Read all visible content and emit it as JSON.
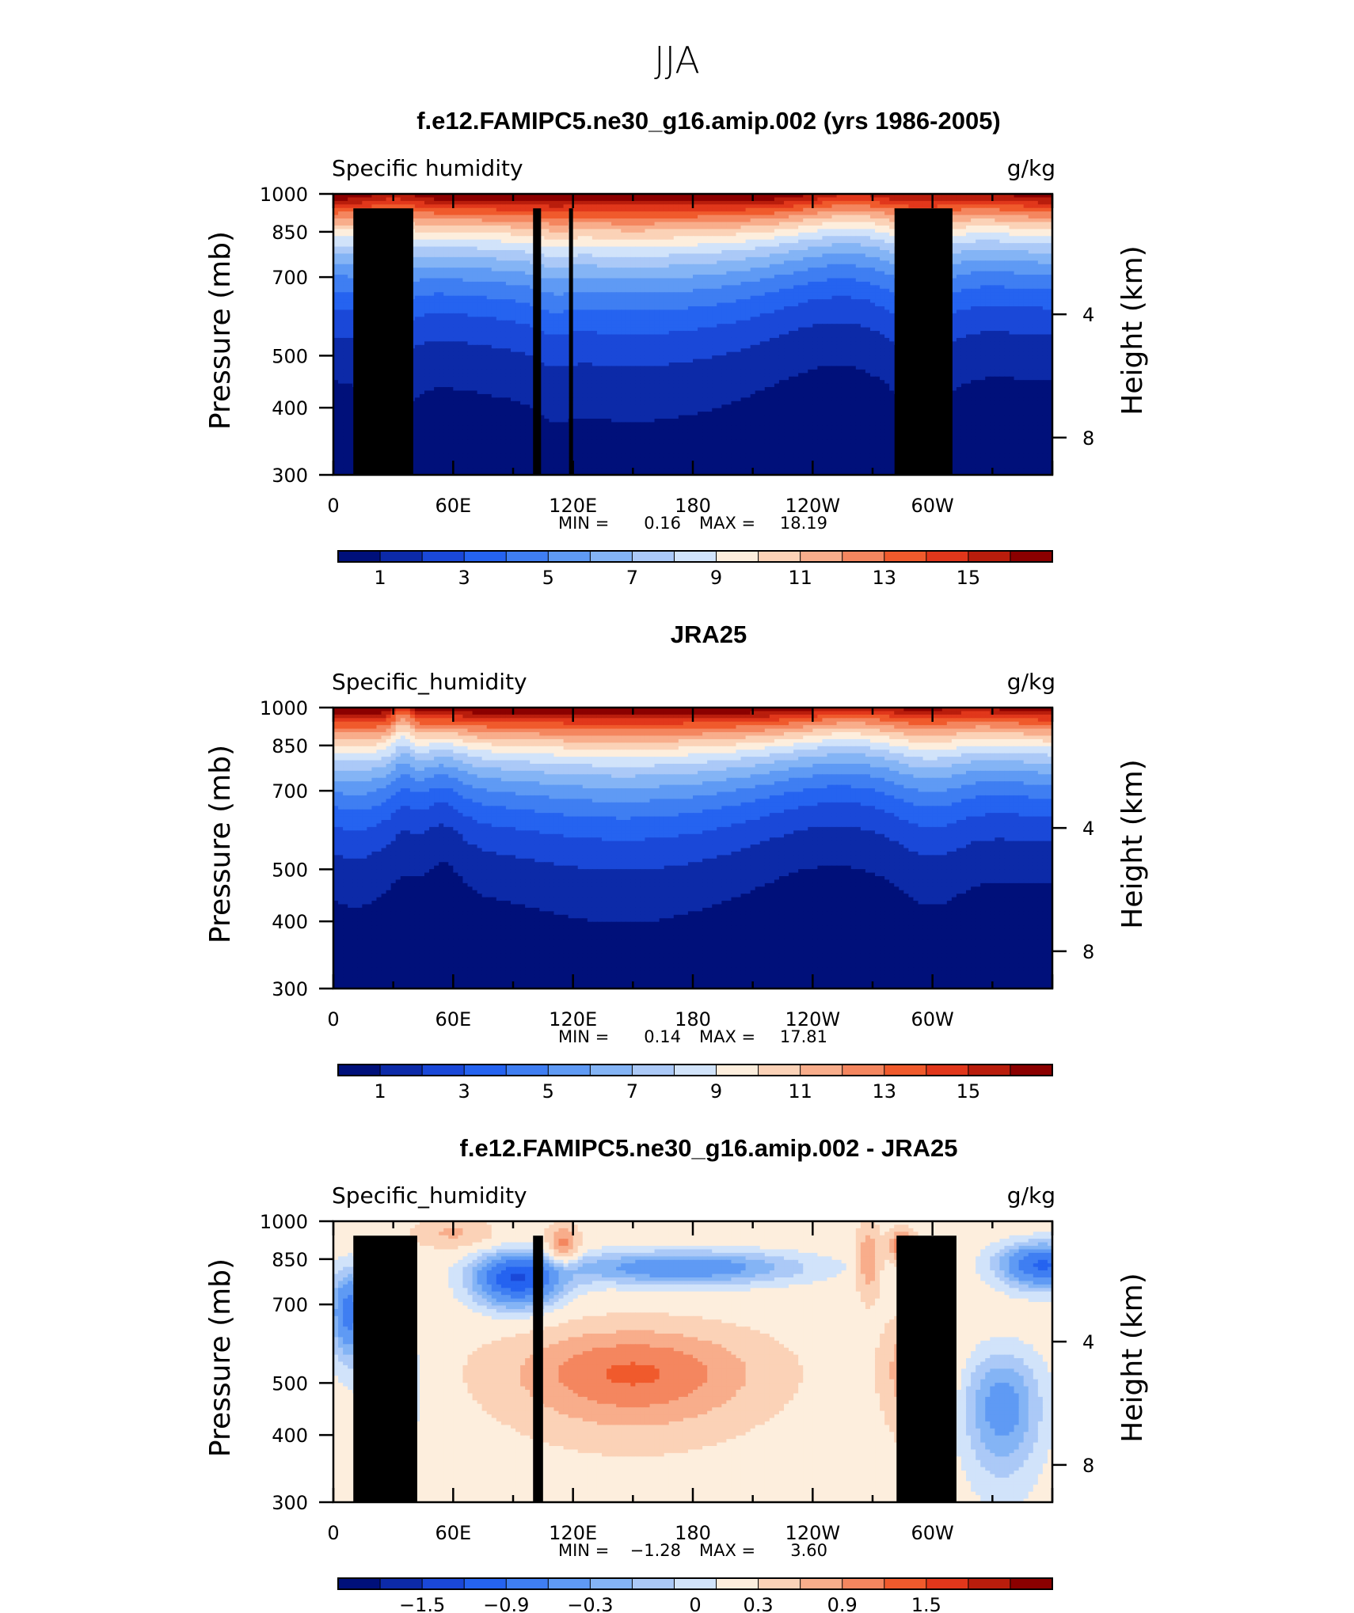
{
  "figure": {
    "title": "JJA"
  },
  "colors": {
    "seq_palette": [
      "#00107a",
      "#0c2aa8",
      "#1a48d8",
      "#2563f0",
      "#3f7ef2",
      "#5f9af4",
      "#84b4f5",
      "#abc9f7",
      "#d1e3fa",
      "#fdeedd",
      "#fbd2b7",
      "#f8ad8b",
      "#f4865f",
      "#f05a2c",
      "#e1371b",
      "#b91d0c",
      "#8b0000"
    ],
    "diff_palette": [
      "#00107a",
      "#0c2aa8",
      "#1a48d8",
      "#2563f0",
      "#3f7ef2",
      "#5f9af4",
      "#84b4f5",
      "#abc9f7",
      "#d1e3fa",
      "#fdeedd",
      "#fbd2b7",
      "#f8ad8b",
      "#f4865f",
      "#f05a2c",
      "#e1371b",
      "#b91d0c",
      "#8b0000"
    ],
    "topography": "#000000"
  },
  "chart_data": [
    {
      "type": "heatmap",
      "title": "f.e12.FAMIPC5.ne30_g16.amip.002 (yrs 1986-2005)",
      "left_label": "Specific humidity",
      "right_label": "g/kg",
      "ylabel": "Pressure (mb)",
      "ylabel_right": "Height (km)",
      "yticks": [
        "300",
        "400",
        "500",
        "700",
        "850",
        "1000"
      ],
      "yticks_right": [
        "8",
        "4"
      ],
      "xticks": [
        "0",
        "60E",
        "120E",
        "180",
        "120W",
        "60W"
      ],
      "ylim": [
        1000,
        300
      ],
      "xlim": [
        0,
        360
      ],
      "colorbar": {
        "labels": [
          "1",
          "3",
          "5",
          "7",
          "9",
          "11",
          "13",
          "15"
        ],
        "levels": [
          0,
          1,
          2,
          3,
          4,
          5,
          6,
          7,
          8,
          9,
          10,
          11,
          12,
          13,
          14,
          15,
          16
        ]
      },
      "min_max": {
        "min_label": "MIN =",
        "min": "0.16",
        "max_label": "MAX =",
        "max": "18.19"
      },
      "field": "model",
      "topography": [
        {
          "lon0": 10,
          "lon1": 40,
          "p": 940
        },
        {
          "lon0": 29,
          "lon1": 38,
          "p": 850
        },
        {
          "lon0": 100,
          "lon1": 104,
          "p": 940
        },
        {
          "lon0": 118,
          "lon1": 120,
          "p": 940
        },
        {
          "lon0": 281,
          "lon1": 310,
          "p": 940
        }
      ]
    },
    {
      "type": "heatmap",
      "title": "JRA25",
      "left_label": "Specific_humidity",
      "right_label": "g/kg",
      "ylabel": "Pressure (mb)",
      "ylabel_right": "Height (km)",
      "yticks": [
        "300",
        "400",
        "500",
        "700",
        "850",
        "1000"
      ],
      "yticks_right": [
        "8",
        "4"
      ],
      "xticks": [
        "0",
        "60E",
        "120E",
        "180",
        "120W",
        "60W"
      ],
      "ylim": [
        1000,
        300
      ],
      "xlim": [
        0,
        360
      ],
      "colorbar": {
        "labels": [
          "1",
          "3",
          "5",
          "7",
          "9",
          "11",
          "13",
          "15"
        ],
        "levels": [
          0,
          1,
          2,
          3,
          4,
          5,
          6,
          7,
          8,
          9,
          10,
          11,
          12,
          13,
          14,
          15,
          16
        ]
      },
      "min_max": {
        "min_label": "MIN =",
        "min": "0.14",
        "max_label": "MAX =",
        "max": "17.81"
      },
      "field": "obs",
      "topography": []
    },
    {
      "type": "heatmap",
      "title": "f.e12.FAMIPC5.ne30_g16.amip.002 - JRA25",
      "left_label": "Specific_humidity",
      "right_label": "g/kg",
      "ylabel": "Pressure (mb)",
      "ylabel_right": "Height (km)",
      "yticks": [
        "300",
        "400",
        "500",
        "700",
        "850",
        "1000"
      ],
      "yticks_right": [
        "8",
        "4"
      ],
      "xticks": [
        "0",
        "60E",
        "120E",
        "180",
        "120W",
        "60W"
      ],
      "ylim": [
        1000,
        300
      ],
      "xlim": [
        0,
        360
      ],
      "colorbar": {
        "labels": [
          "−1.5",
          "−0.9",
          "−0.3",
          "0",
          "0.3",
          "0.9",
          "1.5"
        ],
        "levels": [
          -2.1,
          -1.8,
          -1.5,
          -1.2,
          -0.9,
          -0.6,
          -0.3,
          -0.1,
          0.1,
          0.3,
          0.6,
          0.9,
          1.2,
          1.5,
          1.8,
          2.1,
          2.4
        ]
      },
      "min_max": {
        "min_label": "MIN =",
        "min": "−1.28",
        "max_label": "MAX =",
        "max": "3.60"
      },
      "field": "diff",
      "topography": [
        {
          "lon0": 10,
          "lon1": 42,
          "p": 940
        },
        {
          "lon0": 28,
          "lon1": 38,
          "p": 870
        },
        {
          "lon0": 100,
          "lon1": 105,
          "p": 940
        },
        {
          "lon0": 282,
          "lon1": 312,
          "p": 940
        }
      ]
    }
  ]
}
